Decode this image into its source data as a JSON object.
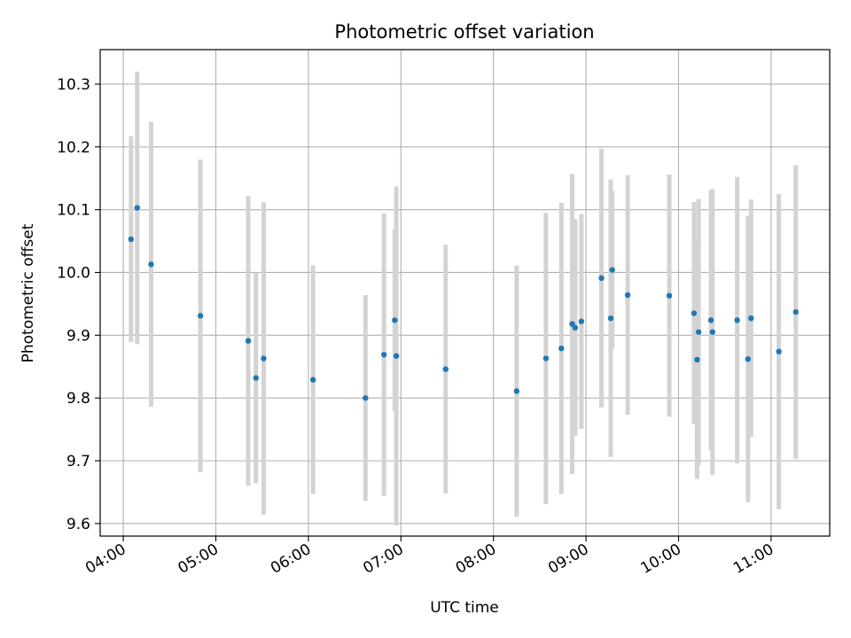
{
  "chart_data": {
    "type": "scatter",
    "title": "Photometric offset variation",
    "xlabel": "UTC time",
    "ylabel": "Photometric offset",
    "grid": true,
    "xlim": [
      "03:45",
      "11:38"
    ],
    "ylim": [
      9.58,
      10.355
    ],
    "x_ticks": [
      "04:00",
      "05:00",
      "06:00",
      "07:00",
      "08:00",
      "09:00",
      "10:00",
      "11:00"
    ],
    "y_ticks": [
      "9.6",
      "9.7",
      "9.8",
      "9.9",
      "10.0",
      "10.1",
      "10.2",
      "10.3"
    ],
    "colors": {
      "marker": "#1f77b4",
      "errorbar": "#d3d3d3",
      "grid": "#b0b0b0"
    },
    "series": [
      {
        "points": [
          {
            "x": "04:05",
            "y": 10.053,
            "err": 0.164
          },
          {
            "x": "04:09",
            "y": 10.103,
            "err": 0.217
          },
          {
            "x": "04:18",
            "y": 10.013,
            "err": 0.227
          },
          {
            "x": "04:50",
            "y": 9.931,
            "err": 0.249
          },
          {
            "x": "05:21",
            "y": 9.891,
            "err": 0.231
          },
          {
            "x": "05:26",
            "y": 9.832,
            "err": 0.168
          },
          {
            "x": "05:31",
            "y": 9.863,
            "err": 0.249
          },
          {
            "x": "06:03",
            "y": 9.829,
            "err": 0.182
          },
          {
            "x": "06:37",
            "y": 9.8,
            "err": 0.164
          },
          {
            "x": "06:49",
            "y": 9.869,
            "err": 0.225
          },
          {
            "x": "06:56",
            "y": 9.924,
            "err": 0.145
          },
          {
            "x": "06:57",
            "y": 9.867,
            "err": 0.27
          },
          {
            "x": "07:29",
            "y": 9.846,
            "err": 0.198
          },
          {
            "x": "08:15",
            "y": 9.811,
            "err": 0.2
          },
          {
            "x": "08:34",
            "y": 9.863,
            "err": 0.232
          },
          {
            "x": "08:44",
            "y": 9.879,
            "err": 0.232
          },
          {
            "x": "08:51",
            "y": 9.918,
            "err": 0.239
          },
          {
            "x": "08:53",
            "y": 9.912,
            "err": 0.173
          },
          {
            "x": "08:57",
            "y": 9.922,
            "err": 0.171
          },
          {
            "x": "09:10",
            "y": 9.991,
            "err": 0.206
          },
          {
            "x": "09:16",
            "y": 9.927,
            "err": 0.221
          },
          {
            "x": "09:17",
            "y": 10.004,
            "err": 0.126
          },
          {
            "x": "09:27",
            "y": 9.964,
            "err": 0.191
          },
          {
            "x": "09:54",
            "y": 9.963,
            "err": 0.193
          },
          {
            "x": "10:10",
            "y": 9.935,
            "err": 0.177
          },
          {
            "x": "10:12",
            "y": 9.861,
            "err": 0.19
          },
          {
            "x": "10:13",
            "y": 9.905,
            "err": 0.212
          },
          {
            "x": "10:21",
            "y": 9.924,
            "err": 0.207
          },
          {
            "x": "10:22",
            "y": 9.905,
            "err": 0.228
          },
          {
            "x": "10:38",
            "y": 9.924,
            "err": 0.228
          },
          {
            "x": "10:45",
            "y": 9.862,
            "err": 0.228
          },
          {
            "x": "10:47",
            "y": 9.927,
            "err": 0.189
          },
          {
            "x": "11:05",
            "y": 9.874,
            "err": 0.251
          },
          {
            "x": "11:16",
            "y": 9.937,
            "err": 0.234
          }
        ]
      }
    ]
  }
}
